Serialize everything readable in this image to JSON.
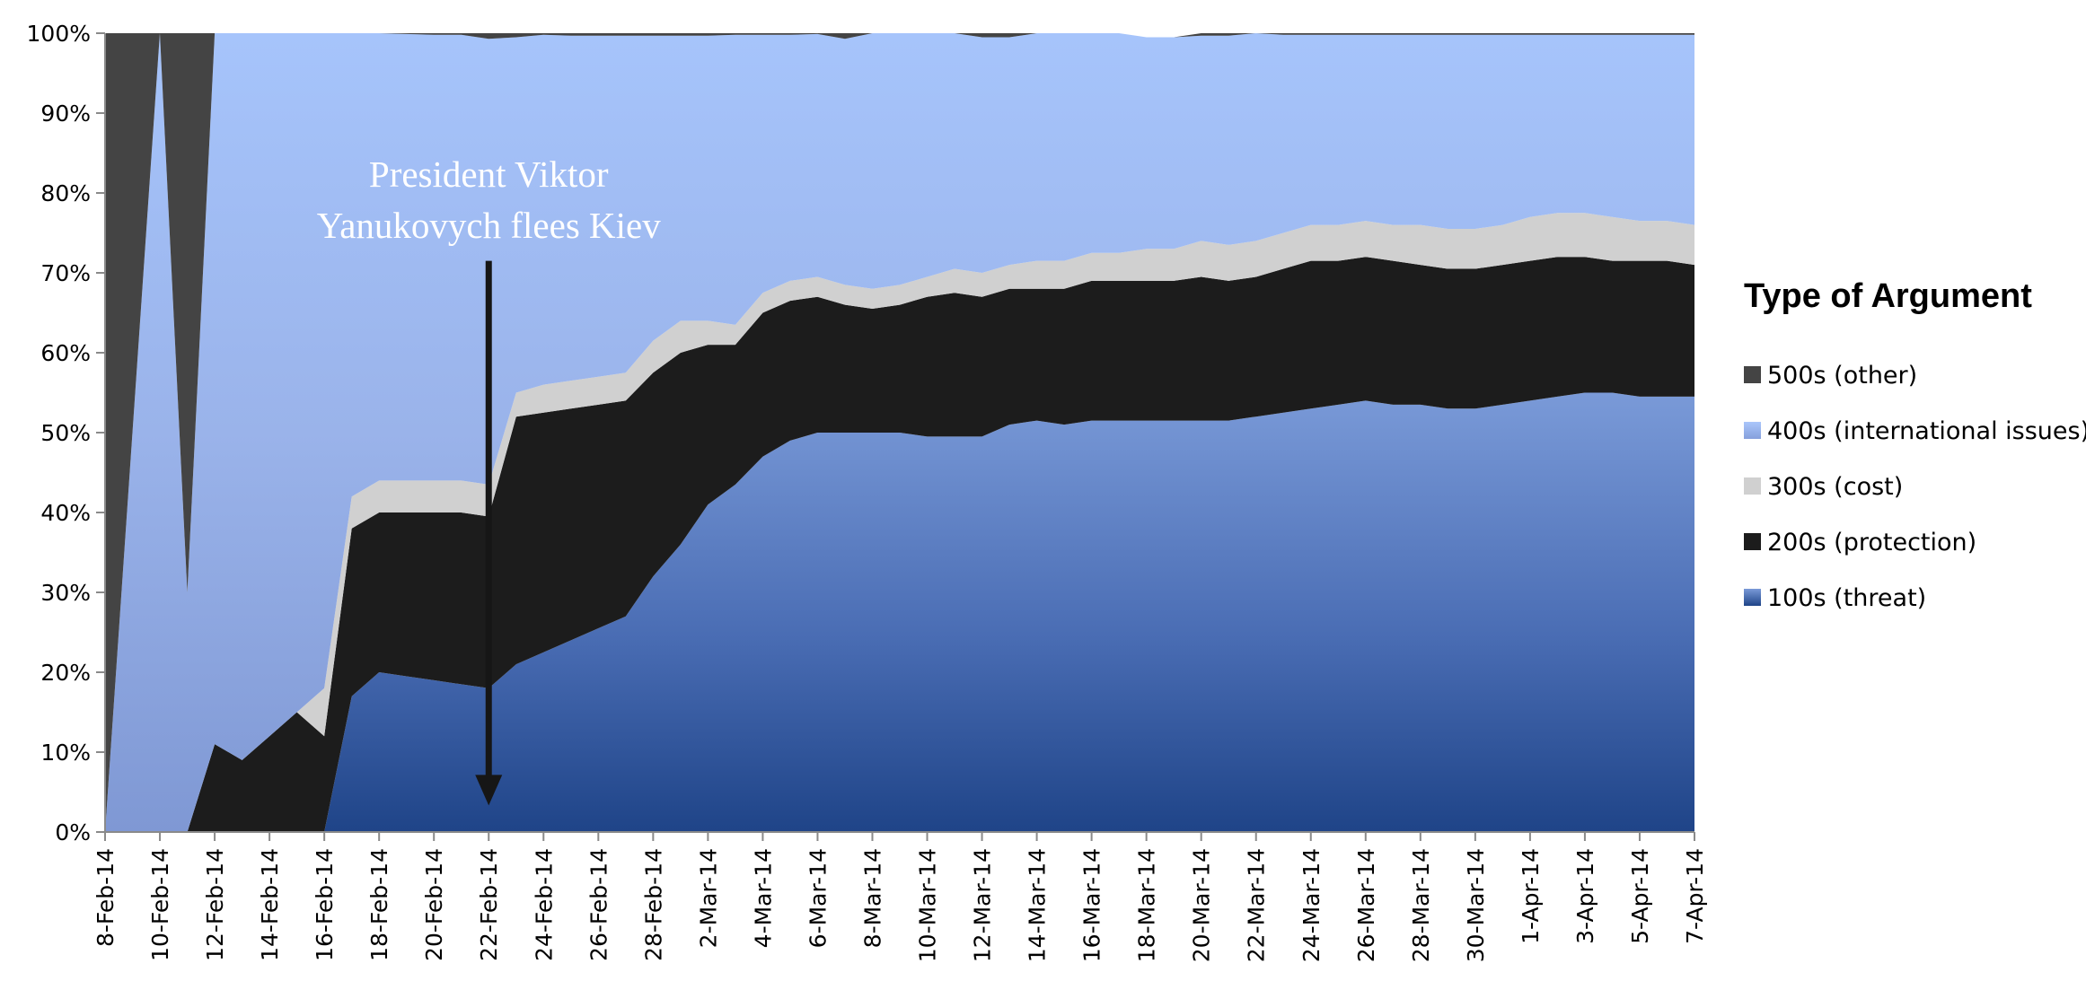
{
  "chart_data": {
    "type": "area",
    "stacked": "percent",
    "title": "",
    "xlabel": "",
    "ylabel": "",
    "ylim": [
      0,
      100
    ],
    "y_ticks": [
      "0%",
      "10%",
      "20%",
      "30%",
      "40%",
      "50%",
      "60%",
      "70%",
      "80%",
      "90%",
      "100%"
    ],
    "x_tick_labels": [
      "8-Feb-14",
      "10-Feb-14",
      "12-Feb-14",
      "14-Feb-14",
      "16-Feb-14",
      "18-Feb-14",
      "20-Feb-14",
      "22-Feb-14",
      "24-Feb-14",
      "26-Feb-14",
      "28-Feb-14",
      "2-Mar-14",
      "4-Mar-14",
      "6-Mar-14",
      "8-Mar-14",
      "10-Mar-14",
      "12-Mar-14",
      "14-Mar-14",
      "16-Mar-14",
      "18-Mar-14",
      "20-Mar-14",
      "22-Mar-14",
      "24-Mar-14",
      "26-Mar-14",
      "28-Mar-14",
      "30-Mar-14",
      "1-Apr-14",
      "3-Apr-14",
      "5-Apr-14",
      "7-Apr-14"
    ],
    "x_start": "8-Feb-14",
    "x_end": "7-Apr-14",
    "x": [
      "8-Feb-14",
      "9-Feb-14",
      "10-Feb-14",
      "11-Feb-14",
      "12-Feb-14",
      "13-Feb-14",
      "14-Feb-14",
      "15-Feb-14",
      "16-Feb-14",
      "17-Feb-14",
      "18-Feb-14",
      "19-Feb-14",
      "20-Feb-14",
      "21-Feb-14",
      "22-Feb-14",
      "23-Feb-14",
      "24-Feb-14",
      "25-Feb-14",
      "26-Feb-14",
      "27-Feb-14",
      "28-Feb-14",
      "1-Mar-14",
      "2-Mar-14",
      "3-Mar-14",
      "4-Mar-14",
      "5-Mar-14",
      "6-Mar-14",
      "7-Mar-14",
      "8-Mar-14",
      "9-Mar-14",
      "10-Mar-14",
      "11-Mar-14",
      "12-Mar-14",
      "13-Mar-14",
      "14-Mar-14",
      "15-Mar-14",
      "16-Mar-14",
      "17-Mar-14",
      "18-Mar-14",
      "19-Mar-14",
      "20-Mar-14",
      "21-Mar-14",
      "22-Mar-14",
      "23-Mar-14",
      "24-Mar-14",
      "25-Mar-14",
      "26-Mar-14",
      "27-Mar-14",
      "28-Mar-14",
      "29-Mar-14",
      "30-Mar-14",
      "31-Mar-14",
      "1-Apr-14",
      "2-Apr-14",
      "3-Apr-14",
      "4-Apr-14",
      "5-Apr-14",
      "6-Apr-14",
      "7-Apr-14"
    ],
    "series": [
      {
        "name": "100s (threat)",
        "color": "#2a4c8e",
        "values": [
          0,
          0,
          0,
          0,
          0,
          0,
          0,
          0,
          0,
          17,
          20,
          19.5,
          19,
          18.5,
          18,
          21,
          22.5,
          24,
          25.5,
          27,
          32,
          36,
          41,
          43.5,
          47,
          49,
          50,
          50,
          50,
          50,
          49.5,
          49.5,
          49.5,
          51,
          51.5,
          51,
          51.5,
          51.5,
          51.5,
          51.5,
          51.5,
          51.5,
          52,
          52.5,
          53,
          53.5,
          54,
          53.5,
          53.5,
          53,
          53,
          53.5,
          54,
          54.5,
          55,
          55,
          54.5,
          54.5,
          54.5
        ]
      },
      {
        "name": "200s (protection)",
        "color": "#1c1c1c",
        "values": [
          0,
          0,
          0,
          0,
          11,
          9,
          12,
          15,
          12,
          21,
          20,
          20.5,
          21,
          21.5,
          21.5,
          31,
          30,
          29,
          28,
          27,
          25.5,
          24,
          20,
          17.5,
          18,
          17.5,
          17,
          16,
          15.5,
          16,
          17.5,
          18,
          17.5,
          17,
          16.5,
          17,
          17.5,
          17.5,
          17.5,
          17.5,
          18,
          17.5,
          17.5,
          18,
          18.5,
          18,
          18,
          18,
          17.5,
          17.5,
          17.5,
          17.5,
          17.5,
          17.5,
          17,
          16.5,
          17,
          17,
          16.5
        ]
      },
      {
        "name": "300s (cost)",
        "color": "#d0d0d0",
        "values": [
          0,
          0,
          0,
          0,
          0,
          0,
          0,
          0,
          6,
          4,
          4,
          4,
          4,
          4,
          4,
          3,
          3.5,
          3.5,
          3.5,
          3.5,
          4,
          4,
          3,
          2.5,
          2.5,
          2.5,
          2.5,
          2.5,
          2.5,
          2.5,
          2.5,
          3,
          3,
          3,
          3.5,
          3.5,
          3.5,
          3.5,
          4,
          4,
          4.5,
          4.5,
          4.5,
          4.5,
          4.5,
          4.5,
          4.5,
          4.5,
          5,
          5,
          5,
          5,
          5.5,
          5.5,
          5.5,
          5.5,
          5,
          5,
          5
        ]
      },
      {
        "name": "400s (international issues)",
        "color": "#9ab4ee",
        "values": [
          0,
          50,
          100,
          30,
          89,
          91,
          88,
          85,
          82,
          58,
          56,
          55.9,
          55.8,
          55.8,
          55.8,
          44.5,
          43.8,
          43.2,
          42.7,
          42.2,
          38.2,
          35.7,
          35.7,
          36.3,
          32.3,
          30.8,
          30.4,
          30.8,
          32,
          31.5,
          30.5,
          29.5,
          29.5,
          28.5,
          28.5,
          28.5,
          27.5,
          27.5,
          26.5,
          26.5,
          25.7,
          26.2,
          26,
          24.8,
          23.8,
          23.8,
          23.3,
          23.8,
          23.8,
          24.3,
          24.3,
          23.8,
          22.8,
          22.3,
          22.3,
          22.8,
          23.3,
          23.3,
          23.8
        ]
      },
      {
        "name": "500s (other)",
        "color": "#444444",
        "values": [
          100,
          50,
          0,
          70,
          0,
          0,
          0,
          0,
          0,
          0,
          0,
          0.1,
          0.2,
          0.2,
          0.7,
          0.5,
          0.2,
          0.3,
          0.3,
          0.3,
          0.3,
          0.3,
          0.3,
          0.2,
          0.2,
          0.2,
          0.1,
          0.7,
          0,
          0,
          0,
          0,
          0.5,
          0.5,
          0,
          0,
          0,
          0,
          0,
          0,
          0.3,
          0.3,
          0,
          0.2,
          0.2,
          0.2,
          0.2,
          0.2,
          0.2,
          0.2,
          0.2,
          0.2,
          0.2,
          0.2,
          0.2,
          0.2,
          0.2,
          0.2,
          0.2
        ]
      }
    ],
    "legend": {
      "title": "Type of Argument",
      "placement": "right",
      "items": [
        {
          "label": "500s (other)",
          "color": "#444444"
        },
        {
          "label": "400s (international issues)",
          "color": "#9ab4ee"
        },
        {
          "label": "300s (cost)",
          "color": "#d0d0d0"
        },
        {
          "label": "200s (protection)",
          "color": "#1c1c1c"
        },
        {
          "label": "100s (threat)",
          "color": "#2a4c8e"
        }
      ]
    },
    "annotations": [
      {
        "text_lines": [
          "President Viktor",
          "Yanukovych flees Kiev"
        ],
        "date": "22-Feb-14",
        "arrow_from": 71.5,
        "arrow_to": 4
      }
    ],
    "grid": false
  }
}
